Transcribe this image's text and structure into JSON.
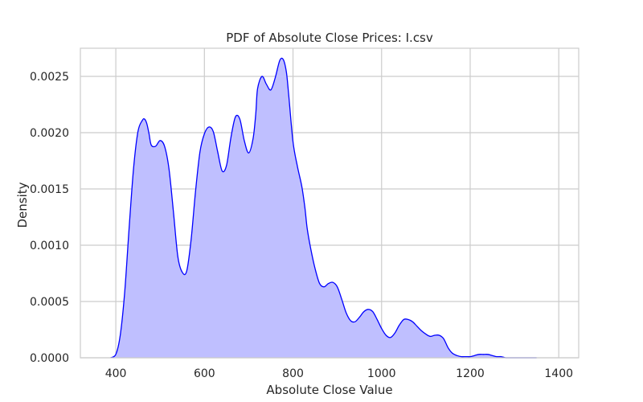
{
  "chart_data": {
    "type": "area",
    "title": "PDF of Absolute Close Prices: I.csv",
    "xlabel": "Absolute Close Value",
    "ylabel": "Density",
    "xlim": [
      320,
      1445
    ],
    "ylim": [
      0,
      0.00275
    ],
    "xticks": [
      400,
      600,
      800,
      1000,
      1200,
      1400
    ],
    "xtick_labels": [
      "400",
      "600",
      "800",
      "1000",
      "1200",
      "1400"
    ],
    "yticks": [
      0,
      0.0005,
      0.001,
      0.0015,
      0.002,
      0.0025
    ],
    "ytick_labels": [
      "0.0000",
      "0.0005",
      "0.0010",
      "0.0015",
      "0.0020",
      "0.0025"
    ],
    "grid": true,
    "legend": "none",
    "line_color": "#0000ff",
    "fill_color": "#bfbfff",
    "x": [
      388,
      400,
      410,
      420,
      430,
      440,
      450,
      460,
      465,
      470,
      475,
      480,
      490,
      500,
      510,
      520,
      530,
      540,
      550,
      560,
      570,
      580,
      590,
      600,
      610,
      620,
      630,
      640,
      650,
      660,
      670,
      680,
      690,
      700,
      710,
      716,
      720,
      730,
      740,
      750,
      760,
      770,
      778,
      785,
      790,
      800,
      810,
      820,
      827,
      832,
      840,
      850,
      860,
      870,
      880,
      890,
      900,
      910,
      920,
      930,
      940,
      950,
      960,
      970,
      980,
      990,
      1000,
      1010,
      1020,
      1030,
      1040,
      1050,
      1060,
      1070,
      1080,
      1090,
      1100,
      1110,
      1120,
      1130,
      1140,
      1150,
      1160,
      1170,
      1180,
      1190,
      1200,
      1210,
      1220,
      1230,
      1240,
      1250,
      1260,
      1270,
      1280,
      1290,
      1300,
      1310,
      1320,
      1330,
      1340,
      1350
    ],
    "y": [
      0.0,
      3e-05,
      0.0002,
      0.00058,
      0.00115,
      0.00168,
      0.00201,
      0.00211,
      0.00212,
      0.00208,
      0.00199,
      0.00189,
      0.00188,
      0.00193,
      0.00188,
      0.00168,
      0.0013,
      0.0009,
      0.00076,
      0.00077,
      0.00105,
      0.00148,
      0.00183,
      0.00199,
      0.00205,
      0.00201,
      0.00183,
      0.00166,
      0.00171,
      0.00196,
      0.00214,
      0.00212,
      0.00193,
      0.00182,
      0.00195,
      0.00217,
      0.00239,
      0.0025,
      0.00243,
      0.00238,
      0.00249,
      0.00264,
      0.00265,
      0.00254,
      0.00235,
      0.00192,
      0.0017,
      0.00152,
      0.00133,
      0.00115,
      0.00097,
      0.00079,
      0.00066,
      0.00063,
      0.00066,
      0.00067,
      0.00063,
      0.00052,
      0.0004,
      0.00033,
      0.00032,
      0.00036,
      0.00041,
      0.00043,
      0.00041,
      0.00034,
      0.00026,
      0.0002,
      0.00018,
      0.00022,
      0.00029,
      0.00034,
      0.00034,
      0.00032,
      0.00028,
      0.00024,
      0.00021,
      0.00019,
      0.0002,
      0.0002,
      0.00017,
      9e-05,
      4e-05,
      2e-05,
      1e-05,
      1e-05,
      1e-05,
      2e-05,
      3e-05,
      3e-05,
      3e-05,
      2e-05,
      1e-05,
      1e-05,
      0.0,
      0.0,
      0.0,
      0.0,
      0.0,
      0.0,
      0.0,
      0.0
    ]
  }
}
